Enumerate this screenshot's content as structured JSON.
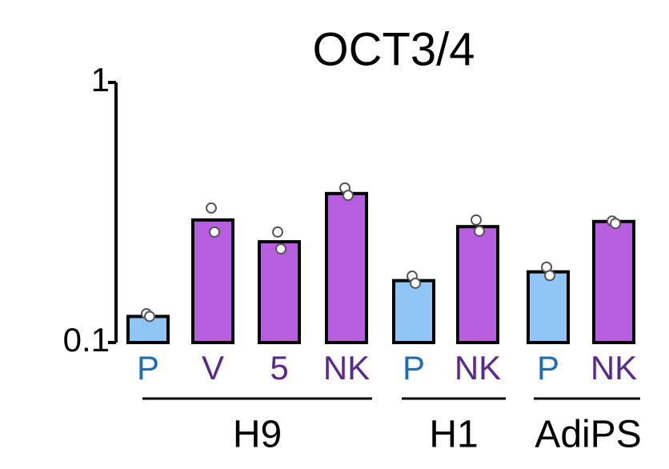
{
  "chart_data": {
    "type": "bar",
    "title": "OCT3/4",
    "categories": [
      "P",
      "V",
      "5",
      "NK",
      "P",
      "NK",
      "P",
      "NK"
    ],
    "values": [
      0.126,
      0.296,
      0.244,
      0.374,
      0.173,
      0.279,
      0.187,
      0.292
    ],
    "points": [
      [
        0.129,
        0.126
      ],
      [
        0.329,
        0.266
      ],
      [
        0.266,
        0.229
      ],
      [
        0.393,
        0.368
      ],
      [
        0.18,
        0.169
      ],
      [
        0.296,
        0.268
      ],
      [
        0.195,
        0.181
      ],
      [
        0.293,
        0.287
      ]
    ],
    "colors": [
      "#8ec5f5",
      "#b75ee0",
      "#b75ee0",
      "#b75ee0",
      "#8ec5f5",
      "#b75ee0",
      "#8ec5f5",
      "#b75ee0"
    ],
    "label_colors": [
      "#1f6fb0",
      "#5a2a8a",
      "#5a2a8a",
      "#5a2a8a",
      "#1f6fb0",
      "#5a2a8a",
      "#1f6fb0",
      "#5a2a8a"
    ],
    "groups": [
      "H9",
      "H1",
      "AdiPS"
    ],
    "ylim": [
      0.1,
      1
    ],
    "yticks": [
      0.1,
      1
    ],
    "log_scale": true,
    "grid": false
  }
}
